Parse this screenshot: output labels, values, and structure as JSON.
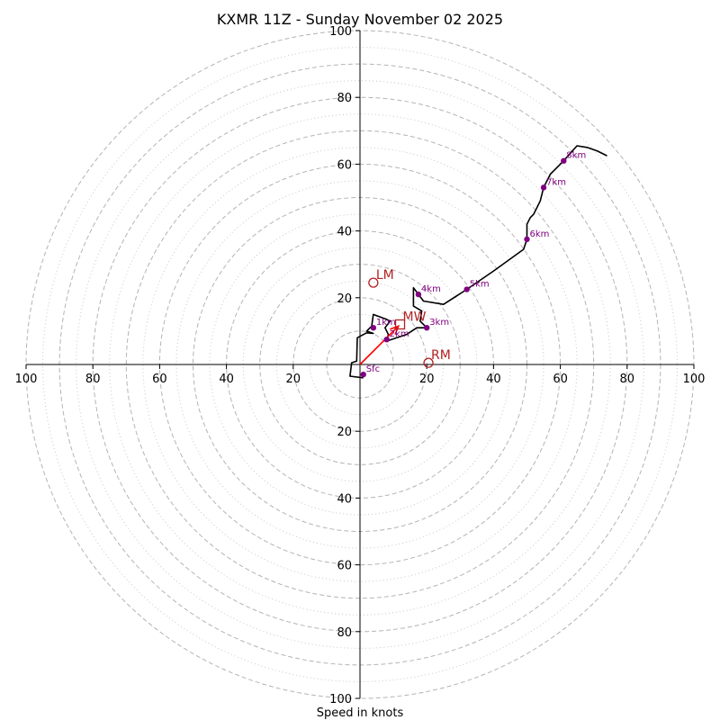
{
  "chart_data": {
    "type": "hodograph",
    "title": "KXMR 11Z - Sunday November 02 2025",
    "xlabel": "Speed in knots",
    "rmax": 100,
    "major_rings": [
      10,
      20,
      30,
      40,
      50,
      60,
      70,
      80,
      90,
      100
    ],
    "minor_rings": [
      15,
      25,
      35,
      45,
      55,
      65,
      75,
      85,
      95
    ],
    "axis_ticks": {
      "positive_x": [
        "20",
        "40",
        "60",
        "80",
        "100"
      ],
      "negative_x": [
        "100",
        "80",
        "60",
        "40",
        "20"
      ],
      "positive_y": [
        "20",
        "40",
        "60",
        "80",
        "100"
      ],
      "negative_y": [
        "20",
        "40",
        "60",
        "80",
        "100"
      ]
    },
    "trace_color": "#000000",
    "height_marker_color": "#800080",
    "motion_color": "#b22222",
    "shear_vector_color": "#ff0000",
    "trace": [
      [
        1,
        -4
      ],
      [
        -3,
        -3.5
      ],
      [
        -2.5,
        0.5
      ],
      [
        -1,
        1
      ],
      [
        -0.8,
        8
      ],
      [
        2,
        9.5
      ],
      [
        4,
        9.3
      ],
      [
        2,
        10
      ],
      [
        3.5,
        11.5
      ],
      [
        4,
        15
      ],
      [
        8,
        13.5
      ],
      [
        9,
        13
      ],
      [
        7.5,
        11
      ],
      [
        8.5,
        9
      ],
      [
        8,
        7
      ],
      [
        11,
        8
      ],
      [
        14,
        9
      ],
      [
        17,
        11
      ],
      [
        20,
        11
      ],
      [
        18,
        13
      ],
      [
        18.5,
        16
      ],
      [
        16,
        17.5
      ],
      [
        16,
        23
      ],
      [
        19,
        19
      ],
      [
        25,
        18
      ],
      [
        32,
        22.5
      ],
      [
        40,
        28
      ],
      [
        49,
        34.5
      ],
      [
        50,
        37.5
      ],
      [
        50,
        42
      ],
      [
        51,
        44
      ],
      [
        52,
        45
      ],
      [
        54,
        49
      ],
      [
        55,
        53
      ],
      [
        57,
        57
      ],
      [
        58,
        58
      ],
      [
        61,
        61
      ],
      [
        65,
        65.5
      ],
      [
        68,
        65
      ],
      [
        71,
        64
      ],
      [
        74,
        62.5
      ]
    ],
    "heights": [
      {
        "label": "Sfc",
        "u": 1,
        "v": -3
      },
      {
        "label": "1km",
        "u": 4,
        "v": 11
      },
      {
        "label": "2km",
        "u": 8,
        "v": 7.5
      },
      {
        "label": "3km",
        "u": 20,
        "v": 11
      },
      {
        "label": "4km",
        "u": 17.5,
        "v": 21
      },
      {
        "label": "5km",
        "u": 32,
        "v": 22.5
      },
      {
        "label": "6km",
        "u": 50,
        "v": 37.5
      },
      {
        "label": "7km",
        "u": 55,
        "v": 53
      },
      {
        "label": "8km",
        "u": 61,
        "v": 61
      }
    ],
    "storm_motions": [
      {
        "label": "LM",
        "u": 4,
        "v": 24.5,
        "marker": "circle"
      },
      {
        "label": "MW",
        "u": 12,
        "v": 12,
        "marker": "square"
      },
      {
        "label": "RM",
        "u": 20.5,
        "v": 0.5,
        "marker": "circle"
      }
    ],
    "shear_vector": {
      "from": [
        0,
        0
      ],
      "to": [
        11.5,
        11.5
      ]
    }
  }
}
